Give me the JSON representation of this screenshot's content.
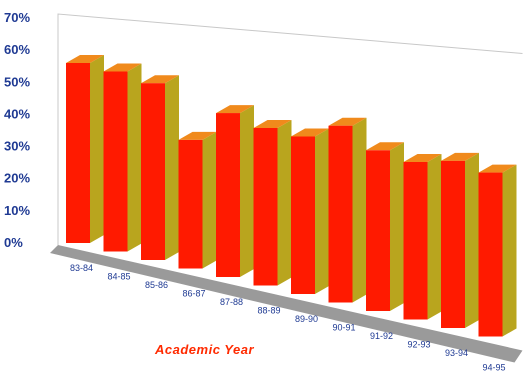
{
  "chart_data": {
    "type": "bar",
    "title": "",
    "xlabel": "Academic  Year",
    "ylabel": "",
    "ylim": [
      0,
      70
    ],
    "yticks": [
      "0%",
      "10%",
      "20%",
      "30%",
      "40%",
      "50%",
      "60%",
      "70%"
    ],
    "categories": [
      "83-84",
      "84-85",
      "85-86",
      "86-87",
      "87-88",
      "88-89",
      "89-90",
      "90-91",
      "91-92",
      "92-93",
      "93-94",
      "94-95"
    ],
    "values": [
      56,
      56,
      55,
      40,
      51,
      49,
      49,
      55,
      50,
      49,
      52,
      51
    ],
    "grid": false,
    "legend": "none"
  },
  "colors": {
    "bar_front": "#ff1a00",
    "bar_side": "#b9a51e",
    "bar_top": "#f08a1c",
    "floor": "#9a9a9a",
    "wall_line": "#c8c8c8",
    "tick_text": "#1f3a93",
    "xlabel_text": "#ff2a00"
  }
}
